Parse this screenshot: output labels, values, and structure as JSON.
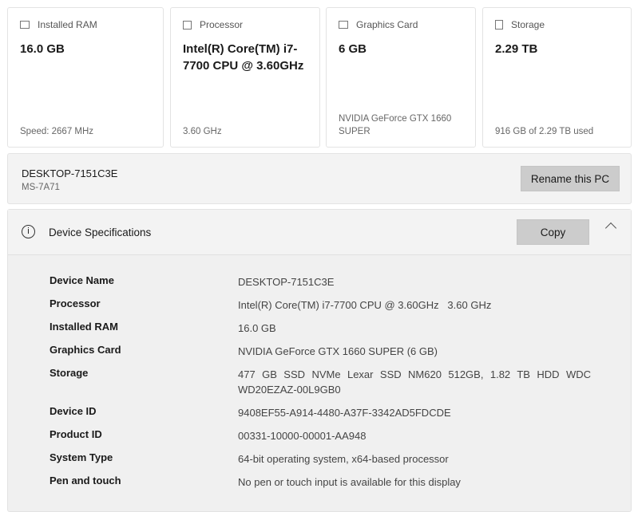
{
  "cards": [
    {
      "icon": "ram-icon",
      "label": "Installed RAM",
      "value": "16.0 GB",
      "sub": "Speed: 2667 MHz"
    },
    {
      "icon": "processor-icon",
      "label": "Processor",
      "value": "Intel(R) Core(TM) i7-7700 CPU @ 3.60GHz",
      "sub": "3.60 GHz"
    },
    {
      "icon": "graphics-card-icon",
      "label": "Graphics Card",
      "value": "6 GB",
      "sub": "NVIDIA GeForce GTX 1660 SUPER"
    },
    {
      "icon": "storage-icon",
      "label": "Storage",
      "value": "2.29 TB",
      "sub": "916 GB of 2.29 TB used"
    }
  ],
  "pc": {
    "name": "DESKTOP-7151C3E",
    "model": "MS-7A71",
    "rename_label": "Rename this PC"
  },
  "specs": {
    "title": "Device Specifications",
    "info_glyph": "i",
    "copy_label": "Copy",
    "rows": [
      {
        "key": "Device Name",
        "value": "DESKTOP-7151C3E"
      },
      {
        "key": "Processor",
        "value": "Intel(R) Core(TM) i7-7700 CPU @ 3.60GHz   3.60 GHz"
      },
      {
        "key": "Installed RAM",
        "value": "16.0 GB"
      },
      {
        "key": "Graphics Card",
        "value": "NVIDIA GeForce GTX 1660 SUPER (6 GB)"
      },
      {
        "key": "Storage",
        "value": "477 GB SSD NVMe Lexar SSD NM620 512GB, 1.82 TB HDD WDC WD20EZAZ-00L9GB0"
      },
      {
        "key": "Device ID",
        "value": "9408EF55-A914-4480-A37F-3342AD5FDCDE"
      },
      {
        "key": "Product ID",
        "value": "00331-10000-00001-AA948"
      },
      {
        "key": "System Type",
        "value": "64-bit operating system, x64-based processor"
      },
      {
        "key": "Pen and touch",
        "value": "No pen or touch input is available for this display"
      }
    ]
  }
}
